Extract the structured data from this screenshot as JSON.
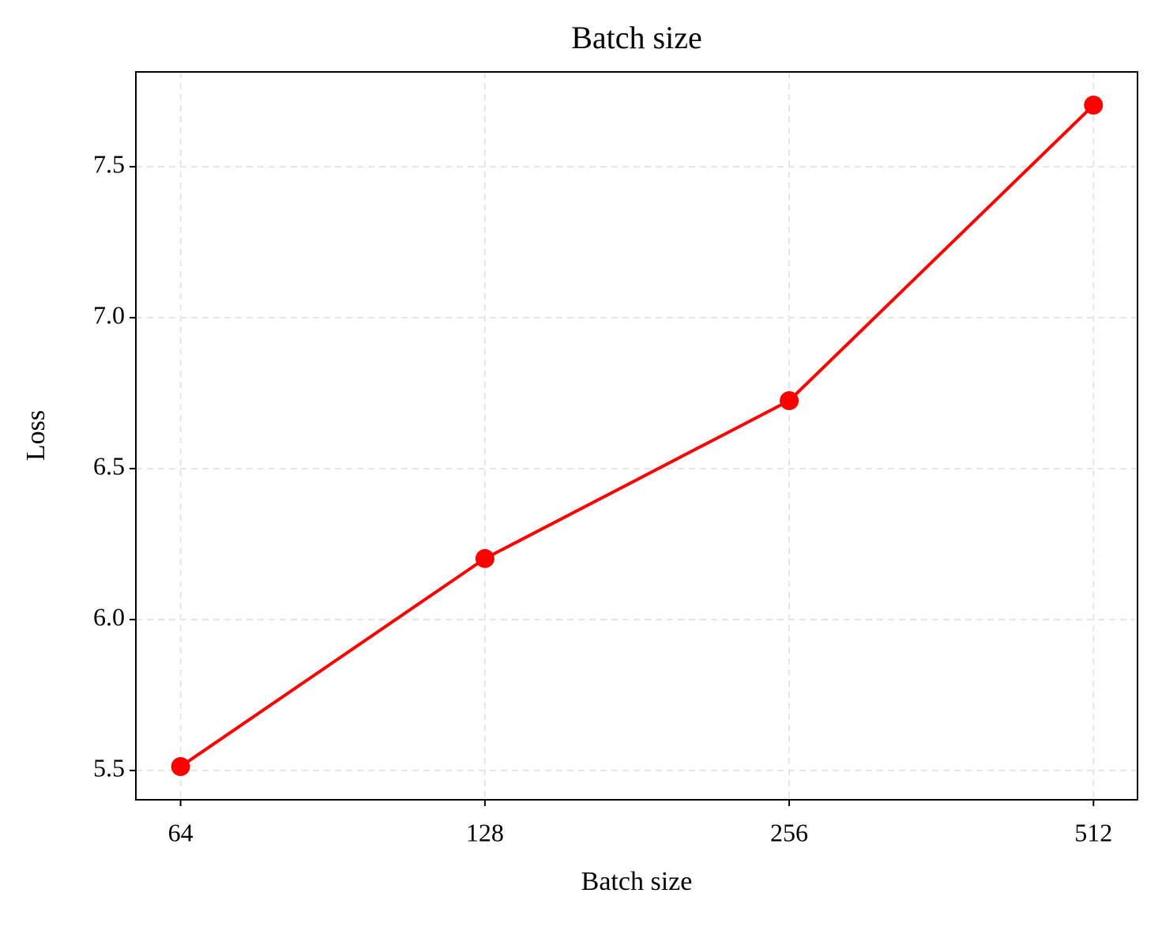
{
  "chart_data": {
    "type": "line",
    "title": "Batch size",
    "xlabel": "Batch size",
    "ylabel": "Loss",
    "x": [
      64,
      128,
      256,
      512
    ],
    "xscale": "log",
    "series": [
      {
        "name": "Loss",
        "color": "#ff0000",
        "values": [
          5.513,
          6.202,
          6.725,
          7.704
        ]
      }
    ],
    "xlim": [
      57.8,
      566
    ],
    "xticks": [
      64,
      128,
      256,
      512
    ],
    "ylim": [
      5.403,
      7.814
    ],
    "yticks": [
      {
        "value": 5.5,
        "label": "5.5"
      },
      {
        "value": 6.0,
        "label": "6.0"
      },
      {
        "value": 6.5,
        "label": "6.5"
      },
      {
        "value": 7.0,
        "label": "7.0"
      },
      {
        "value": 7.5,
        "label": "7.5"
      }
    ],
    "grid": true
  }
}
